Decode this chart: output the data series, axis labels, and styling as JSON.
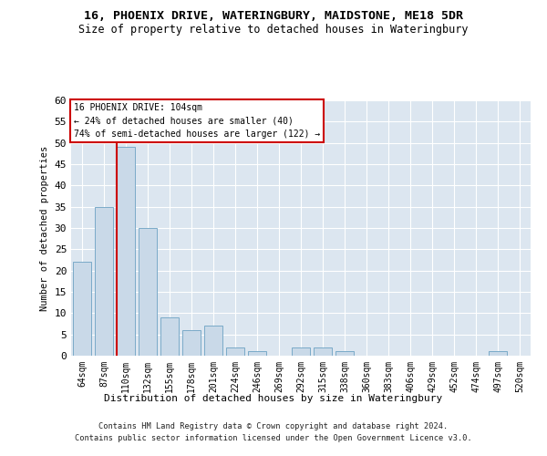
{
  "title1": "16, PHOENIX DRIVE, WATERINGBURY, MAIDSTONE, ME18 5DR",
  "title2": "Size of property relative to detached houses in Wateringbury",
  "xlabel": "Distribution of detached houses by size in Wateringbury",
  "ylabel": "Number of detached properties",
  "categories": [
    "64sqm",
    "87sqm",
    "110sqm",
    "132sqm",
    "155sqm",
    "178sqm",
    "201sqm",
    "224sqm",
    "246sqm",
    "269sqm",
    "292sqm",
    "315sqm",
    "338sqm",
    "360sqm",
    "383sqm",
    "406sqm",
    "429sqm",
    "452sqm",
    "474sqm",
    "497sqm",
    "520sqm"
  ],
  "values": [
    22,
    35,
    49,
    30,
    9,
    6,
    7,
    2,
    1,
    0,
    2,
    2,
    1,
    0,
    0,
    0,
    0,
    0,
    0,
    1,
    0
  ],
  "bar_color": "#c9d9e8",
  "bar_edge_color": "#7aaac8",
  "vline_index": 1.575,
  "vline_color": "#cc0000",
  "annotation_title": "16 PHOENIX DRIVE: 104sqm",
  "annotation_line2": "← 24% of detached houses are smaller (40)",
  "annotation_line3": "74% of semi-detached houses are larger (122) →",
  "annotation_box_edgecolor": "#cc0000",
  "ylim": [
    0,
    60
  ],
  "yticks": [
    0,
    5,
    10,
    15,
    20,
    25,
    30,
    35,
    40,
    45,
    50,
    55,
    60
  ],
  "background_color": "#dce6f0",
  "footer1": "Contains HM Land Registry data © Crown copyright and database right 2024.",
  "footer2": "Contains public sector information licensed under the Open Government Licence v3.0."
}
